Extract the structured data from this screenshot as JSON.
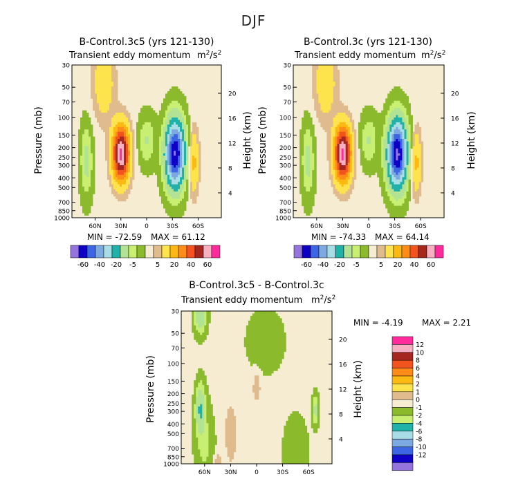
{
  "page": {
    "title": "DJF"
  },
  "colors": {
    "positive": [
      "#f5ecd1",
      "#dfbb8e",
      "#fde34d",
      "#fdb913",
      "#fd8d18",
      "#f3531f",
      "#a6271f",
      "#f6b0c2",
      "#ff2b9d"
    ],
    "negative": [
      "#8bbb2c",
      "#c8ee72",
      "#b2e394",
      "#22b1a8",
      "#a9dde6",
      "#7caae0",
      "#3d66e4",
      "#0e00c4",
      "#9474dd"
    ]
  },
  "chart_data": [
    {
      "type": "contour",
      "id": "left",
      "title": "B-Control.3c5 (yrs 121-130)",
      "subtitle": "Transient eddy momentum",
      "units": "m²/s²",
      "units_base": "m",
      "units_sup1": "2",
      "units_mid": "/s",
      "units_sup2": "2",
      "ylabel_left": "Pressure (mb)",
      "ylabel_right": "Height (km)",
      "pressure_ticks": [
        "30",
        "50",
        "70",
        "100",
        "150",
        "200",
        "250",
        "300",
        "400",
        "500",
        "700",
        "850",
        "1000"
      ],
      "pressure_values": [
        30,
        50,
        70,
        100,
        150,
        200,
        250,
        300,
        400,
        500,
        700,
        850,
        1000
      ],
      "height_ticks": [
        "4",
        "8",
        "12",
        "16",
        "20"
      ],
      "height_values": [
        4,
        8,
        12,
        16,
        20
      ],
      "lat_ticks": [
        "60N",
        "30N",
        "0",
        "30S",
        "60S"
      ],
      "lat_values": [
        60,
        30,
        0,
        -30,
        -60
      ],
      "min_text": "MIN = -72.59",
      "max_text": "MAX = 61.12",
      "min": -72.59,
      "max": 61.12,
      "colorbar_labels": [
        "-60",
        "-40",
        "-20",
        "-5",
        "5",
        "20",
        "40",
        "60"
      ],
      "features": [
        {
          "lat": 30,
          "p": 230,
          "amp": 72,
          "wlat": 7,
          "wlp": 0.45
        },
        {
          "lat": -33,
          "p": 230,
          "amp": -72,
          "wlat": 8,
          "wlp": 0.55
        },
        {
          "lat": -55,
          "p": 280,
          "amp": 22,
          "wlat": 4,
          "wlp": 0.5
        },
        {
          "lat": 70,
          "p": 270,
          "amp": -14,
          "wlat": 5,
          "wlp": 0.6
        },
        {
          "lat": 0,
          "p": 170,
          "amp": -12,
          "wlat": 7,
          "wlp": 0.4
        },
        {
          "lat": 50,
          "p": 45,
          "amp": 16,
          "wlat": 9,
          "wlp": 0.6
        }
      ]
    },
    {
      "type": "contour",
      "id": "right",
      "title": "B-Control.3c (yrs 121-130)",
      "subtitle": "Transient eddy momentum",
      "units": "m²/s²",
      "units_base": "m",
      "units_sup1": "2",
      "units_mid": "/s",
      "units_sup2": "2",
      "ylabel_left": "Pressure (mb)",
      "ylabel_right": "Height (km)",
      "pressure_ticks": [
        "30",
        "50",
        "70",
        "100",
        "150",
        "200",
        "250",
        "300",
        "400",
        "500",
        "700",
        "850",
        "1000"
      ],
      "pressure_values": [
        30,
        50,
        70,
        100,
        150,
        200,
        250,
        300,
        400,
        500,
        700,
        850,
        1000
      ],
      "height_ticks": [
        "4",
        "8",
        "12",
        "16",
        "20"
      ],
      "height_values": [
        4,
        8,
        12,
        16,
        20
      ],
      "lat_ticks": [
        "60N",
        "30N",
        "0",
        "30S",
        "60S"
      ],
      "lat_values": [
        60,
        30,
        0,
        -30,
        -60
      ],
      "min_text": "MIN = -74.33",
      "max_text": "MAX = 64.14",
      "min": -74.33,
      "max": 64.14,
      "colorbar_labels": [
        "-60",
        "-40",
        "-20",
        "-5",
        "5",
        "20",
        "40",
        "60"
      ],
      "features": [
        {
          "lat": 30,
          "p": 230,
          "amp": 72,
          "wlat": 7,
          "wlp": 0.45
        },
        {
          "lat": -33,
          "p": 230,
          "amp": -74,
          "wlat": 8,
          "wlp": 0.55
        },
        {
          "lat": -55,
          "p": 280,
          "amp": 22,
          "wlat": 4,
          "wlp": 0.5
        },
        {
          "lat": 70,
          "p": 270,
          "amp": -14,
          "wlat": 5,
          "wlp": 0.6
        },
        {
          "lat": 0,
          "p": 170,
          "amp": -12,
          "wlat": 7,
          "wlp": 0.4
        },
        {
          "lat": 50,
          "p": 45,
          "amp": 16,
          "wlat": 9,
          "wlp": 0.6
        }
      ]
    },
    {
      "type": "contour",
      "id": "diff",
      "title": "B-Control.3c5 - B-Control.3c",
      "subtitle": "Transient eddy momentum",
      "units": "m²/s²",
      "units_base": "m",
      "units_sup1": "2",
      "units_mid": "/s",
      "units_sup2": "2",
      "ylabel_left": "Pressure (mb)",
      "ylabel_right": "Height (km)",
      "pressure_ticks": [
        "30",
        "50",
        "70",
        "100",
        "150",
        "200",
        "250",
        "300",
        "400",
        "500",
        "700",
        "850",
        "1000"
      ],
      "pressure_values": [
        30,
        50,
        70,
        100,
        150,
        200,
        250,
        300,
        400,
        500,
        700,
        850,
        1000
      ],
      "height_ticks": [
        "4",
        "8",
        "12",
        "16",
        "20"
      ],
      "height_values": [
        4,
        8,
        12,
        16,
        20
      ],
      "lat_ticks": [
        "60N",
        "30N",
        "0",
        "30S",
        "60S"
      ],
      "lat_values": [
        60,
        30,
        0,
        -30,
        -60
      ],
      "min_text": "MIN =   -4.19",
      "max_text": "MAX =    2.21",
      "min": -4.19,
      "max": 2.21,
      "colorbar_labels": [
        "12",
        "10",
        "8",
        "6",
        "4",
        "2",
        "1",
        "0",
        "-1",
        "-2",
        "-4",
        "-6",
        "-8",
        "-10",
        "-12"
      ],
      "features": [
        {
          "lat": 65,
          "p": 280,
          "amp": -4.2,
          "wlat": 4,
          "wlp": 0.4
        },
        {
          "lat": 65,
          "p": 33,
          "amp": -3.8,
          "wlat": 5,
          "wlp": 0.3
        },
        {
          "lat": -68,
          "p": 290,
          "amp": -3.0,
          "wlat": 2.5,
          "wlp": 0.25
        },
        {
          "lat": 0,
          "p": 170,
          "amp": 1.6,
          "wlat": 3,
          "wlp": 0.25
        },
        {
          "lat": 60,
          "p": 700,
          "amp": -1.5,
          "wlat": 8,
          "wlp": 0.7
        },
        {
          "lat": -45,
          "p": 800,
          "amp": -1.3,
          "wlat": 10,
          "wlp": 0.6
        },
        {
          "lat": -10,
          "p": 60,
          "amp": -1.2,
          "wlat": 15,
          "wlp": 0.5
        },
        {
          "lat": 30,
          "p": 500,
          "amp": 1.1,
          "wlat": 6,
          "wlp": 0.6
        },
        {
          "lat": 45,
          "p": 960,
          "amp": 1.6,
          "wlat": 3,
          "wlp": 0.15
        }
      ]
    }
  ]
}
